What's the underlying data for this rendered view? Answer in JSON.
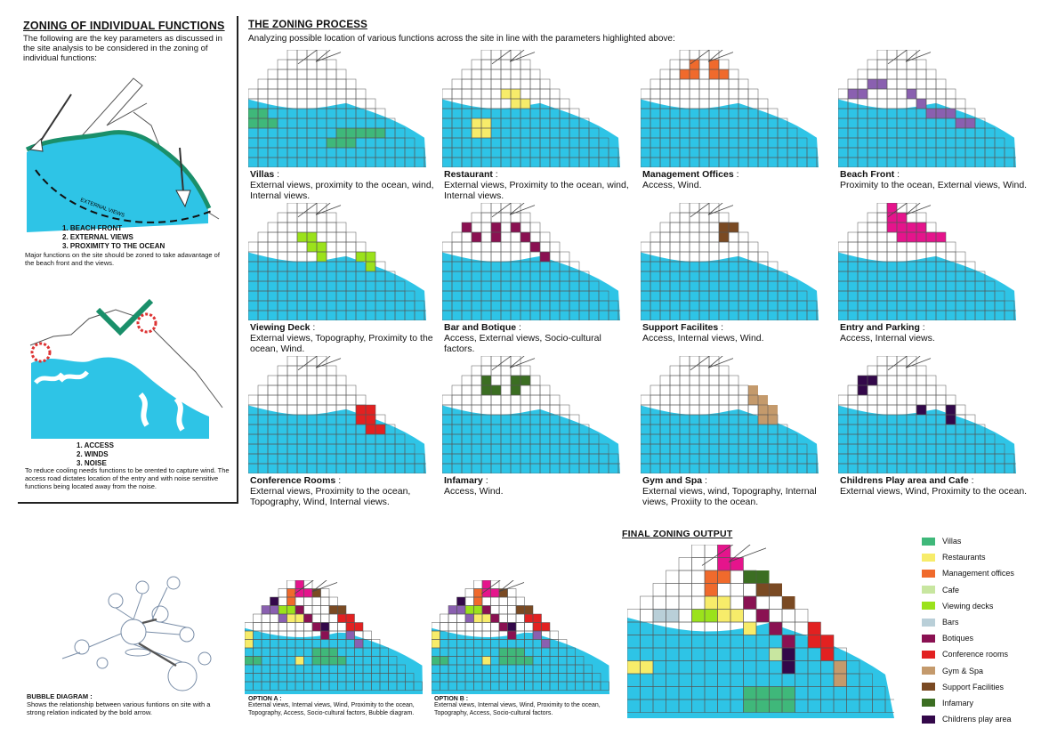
{
  "left": {
    "title": "ZONING OF INDIVIDUAL FUNCTIONS",
    "intro": "The following are the key parameters as discussed in the site analysis to be considered in the zoning of individual functions:",
    "views_label": "EXTERNAL VIEWS",
    "list1": [
      "1. BEACH FRONT",
      "2. EXTERNAL VIEWS",
      "3. PROXIMITY TO THE OCEAN"
    ],
    "note1": "Major functions on the site should be zoned to take adavantage of the beach front and the views.",
    "list2": [
      "1. ACCESS",
      "2. WINDS",
      "3. NOISE"
    ],
    "note2": "To reduce cooling needs functions to be orented to capture wind. The access road dictates location of the entry and with noise sensitive functions being located away from the noise."
  },
  "process": {
    "title": "THE ZONING PROCESS",
    "subtitle": "Analyzing possible location of various functions across the site in line with the parameters highlighted above:"
  },
  "colors": {
    "ocean": "#2ec4e6",
    "grid": "#6b6b6b",
    "villas": "#3fb87a",
    "restaurants": "#f7ec6a",
    "management": "#f06a2c",
    "cafe": "#c8e6a0",
    "viewing": "#9be21b",
    "bars": "#b9cfd8",
    "botiques": "#8a1152",
    "conference": "#e22121",
    "gym": "#c49a6c",
    "support": "#7a4a23",
    "infamary": "#3b6e22",
    "children": "#33084a",
    "beach": "#8a60b0",
    "entry": "#e5148c"
  },
  "maps": [
    {
      "name": "Villas",
      "params": "External views, proximity to the ocean, wind, Internal views.",
      "color": "#3fb87a"
    },
    {
      "name": "Restaurant",
      "params": "External views, Proximity to the ocean, wind, Internal views.",
      "color": "#f7ec6a"
    },
    {
      "name": "Management Offices",
      "params": "Access, Wind.",
      "color": "#f06a2c"
    },
    {
      "name": "Beach Front",
      "params": "Proximity to the ocean, External views, Wind.",
      "color": "#8a60b0"
    },
    {
      "name": "Viewing Deck",
      "params": "External views, Topography, Proximity to the ocean, Wind.",
      "color": "#9be21b"
    },
    {
      "name": "Bar and Botique",
      "params": "Access, External views, Socio-cultural factors.",
      "color": "#8a1152"
    },
    {
      "name": "Support Facilites",
      "params": "Access, Internal views, Wind.",
      "color": "#7a4a23"
    },
    {
      "name": "Entry and Parking",
      "params": "Access, Internal views.",
      "color": "#e5148c"
    },
    {
      "name": "Conference Rooms",
      "params": "External views, Proximity to the ocean, Topography, Wind, Internal views.",
      "color": "#e22121"
    },
    {
      "name": "Infamary",
      "params": "Access, Wind.",
      "color": "#3b6e22"
    },
    {
      "name": "Gym and Spa",
      "params": "External views, wind, Topography, Internal views, Proxiity to the ocean.",
      "color": "#c49a6c"
    },
    {
      "name": "Childrens Play area and Cafe",
      "params": "External views, Wind, Proximity to the ocean.",
      "color": "#33084a"
    }
  ],
  "bubble": {
    "title": "BUBBLE DIAGRAM :",
    "text": "Shows the relationship between various funtions on site with a strong relation indicated by the bold arrow."
  },
  "optionA": {
    "title": "OPTION A :",
    "text": "External views, Internal views, Wind, Proximity to the ocean, Topography, Access, Socio-cultural factors, Bubble diagram."
  },
  "optionB": {
    "title": "OPTION B :",
    "text": "External views, Internal views, Wind, Proximity to the ocean, Topography, Access, Socio-cultural factors."
  },
  "final": {
    "title": "FINAL ZONING OUTPUT"
  },
  "legend": [
    {
      "label": "Villas",
      "color": "#3fb87a"
    },
    {
      "label": "Restaurants",
      "color": "#f7ec6a"
    },
    {
      "label": "Management offices",
      "color": "#f06a2c"
    },
    {
      "label": "Cafe",
      "color": "#c8e6a0"
    },
    {
      "label": "Viewing decks",
      "color": "#9be21b"
    },
    {
      "label": "Bars",
      "color": "#b9cfd8"
    },
    {
      "label": "Botiques",
      "color": "#8a1152"
    },
    {
      "label": "Conference rooms",
      "color": "#e22121"
    },
    {
      "label": "Gym & Spa",
      "color": "#c49a6c"
    },
    {
      "label": "Support Facilities",
      "color": "#7a4a23"
    },
    {
      "label": "Infamary",
      "color": "#3b6e22"
    },
    {
      "label": "Childrens play area",
      "color": "#33084a"
    }
  ]
}
